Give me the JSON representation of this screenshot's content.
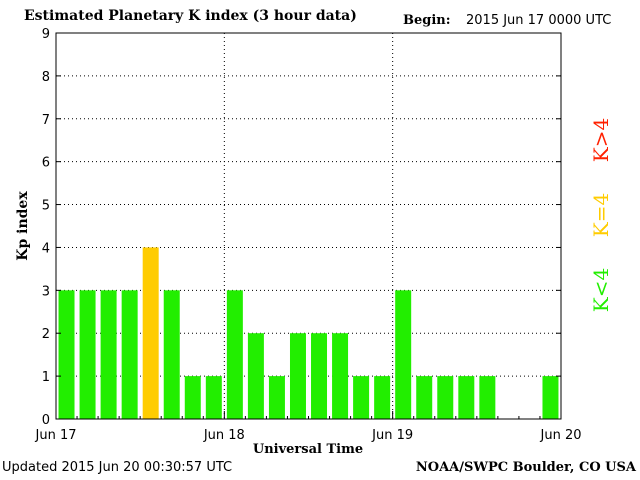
{
  "header": {
    "title": "Estimated Planetary K index (3 hour data)",
    "begin_label": "Begin:",
    "begin_value": "2015 Jun 17 0000 UTC"
  },
  "footer": {
    "updated": "Updated 2015 Jun 20 00:30:57 UTC",
    "source": "NOAA/SWPC Boulder, CO USA"
  },
  "legend": [
    {
      "label": "K>4",
      "color": "#ff2000"
    },
    {
      "label": "K=4",
      "color": "#ffcc00"
    },
    {
      "label": "K<4",
      "color": "#22ee00"
    }
  ],
  "chart_data": {
    "type": "bar",
    "title": "Estimated Planetary K index (3 hour data)",
    "xlabel": "Universal Time",
    "ylabel": "Kp index",
    "ylim": [
      0,
      9
    ],
    "yticks": [
      0,
      1,
      2,
      3,
      4,
      5,
      6,
      7,
      8,
      9
    ],
    "day_ticks": [
      "Jun 17",
      "Jun 18",
      "Jun 19",
      "Jun 20"
    ],
    "bars_per_day": 8,
    "values": [
      3,
      3,
      3,
      3,
      4,
      3,
      1,
      1,
      3,
      2,
      1,
      2,
      2,
      2,
      1,
      1,
      3,
      1,
      1,
      1,
      1,
      null,
      null,
      1
    ],
    "colors": {
      "below4": "#22ee00",
      "equal4": "#ffcc00",
      "above4": "#ff2000"
    },
    "grid": true
  }
}
